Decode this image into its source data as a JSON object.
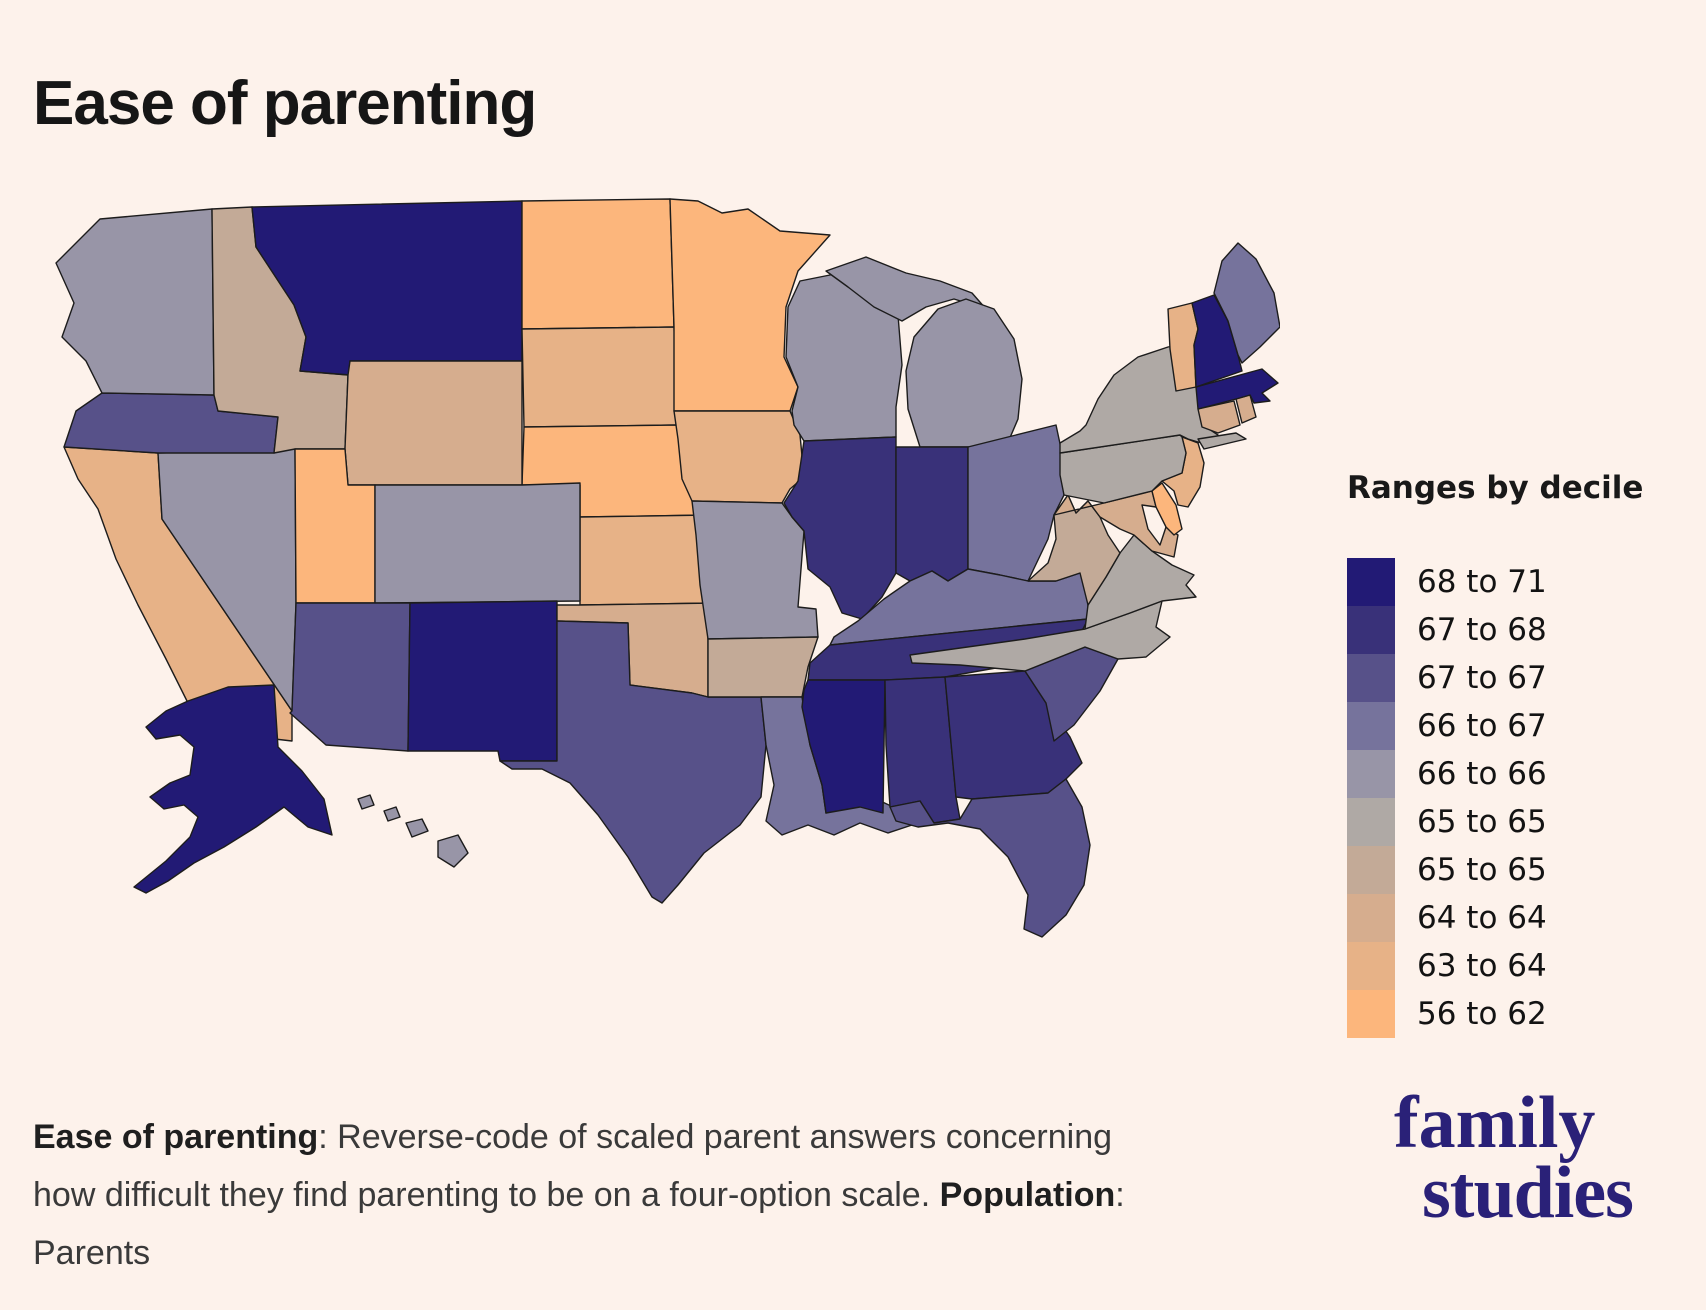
{
  "title": "Ease of parenting",
  "background_color": "#FDF2EB",
  "legend": {
    "title": "Ranges by decile",
    "items": [
      {
        "label": "68 to 71",
        "color": "#221A75"
      },
      {
        "label": "67 to 68",
        "color": "#393179"
      },
      {
        "label": "67 to 67",
        "color": "#575189"
      },
      {
        "label": "66 to 67",
        "color": "#76739C"
      },
      {
        "label": "66 to 66",
        "color": "#9895A7"
      },
      {
        "label": "65 to 65",
        "color": "#AFA9A5"
      },
      {
        "label": "65 to 65",
        "color": "#C3AA97"
      },
      {
        "label": "64 to 64",
        "color": "#D6AD8E"
      },
      {
        "label": "63 to 64",
        "color": "#E7B287"
      },
      {
        "label": "56 to 62",
        "color": "#FCB67C"
      }
    ]
  },
  "caption": {
    "term_bold": "Ease of parenting",
    "term_rest": ": Reverse-code of scaled parent answers concerning how difficult they find parenting to be on a four-option scale. ",
    "population_bold": "Population",
    "population_rest": ": Parents"
  },
  "logo": {
    "line1": "family",
    "line2": "studies",
    "color": "#2A2178"
  },
  "chart_data": {
    "type": "heatmap",
    "subtype": "us-state-choropleth",
    "title": "Ease of parenting",
    "legend_title": "Ranges by decile",
    "legend_position": "right",
    "buckets": [
      {
        "label": "68 to 71",
        "color": "#221A75"
      },
      {
        "label": "67 to 68",
        "color": "#393179"
      },
      {
        "label": "67 to 67",
        "color": "#575189"
      },
      {
        "label": "66 to 67",
        "color": "#76739C"
      },
      {
        "label": "66 to 66",
        "color": "#9895A7"
      },
      {
        "label": "65 to 65",
        "color": "#AFA9A5"
      },
      {
        "label": "65 to 65",
        "color": "#C3AA97"
      },
      {
        "label": "64 to 64",
        "color": "#D6AD8E"
      },
      {
        "label": "63 to 64",
        "color": "#E7B287"
      },
      {
        "label": "56 to 62",
        "color": "#FCB67C"
      }
    ],
    "states": [
      {
        "id": "WA",
        "name": "Washington",
        "range": "66 to 66",
        "color": "#9895A7"
      },
      {
        "id": "OR",
        "name": "Oregon",
        "range": "67 to 67",
        "color": "#575189"
      },
      {
        "id": "CA",
        "name": "California",
        "range": "63 to 64",
        "color": "#E7B287"
      },
      {
        "id": "NV",
        "name": "Nevada",
        "range": "66 to 66",
        "color": "#9895A7"
      },
      {
        "id": "ID",
        "name": "Idaho",
        "range": "65 to 65",
        "color": "#C3AA97"
      },
      {
        "id": "MT",
        "name": "Montana",
        "range": "68 to 71",
        "color": "#221A75"
      },
      {
        "id": "WY",
        "name": "Wyoming",
        "range": "64 to 64",
        "color": "#D6AD8E"
      },
      {
        "id": "UT",
        "name": "Utah",
        "range": "56 to 62",
        "color": "#FCB67C"
      },
      {
        "id": "CO",
        "name": "Colorado",
        "range": "66 to 66",
        "color": "#9895A7"
      },
      {
        "id": "AZ",
        "name": "Arizona",
        "range": "67 to 67",
        "color": "#575189"
      },
      {
        "id": "NM",
        "name": "New Mexico",
        "range": "68 to 71",
        "color": "#221A75"
      },
      {
        "id": "ND",
        "name": "North Dakota",
        "range": "56 to 62",
        "color": "#FCB67C"
      },
      {
        "id": "SD",
        "name": "South Dakota",
        "range": "63 to 64",
        "color": "#E7B287"
      },
      {
        "id": "NE",
        "name": "Nebraska",
        "range": "56 to 62",
        "color": "#FCB67C"
      },
      {
        "id": "KS",
        "name": "Kansas",
        "range": "63 to 64",
        "color": "#E7B287"
      },
      {
        "id": "OK",
        "name": "Oklahoma",
        "range": "64 to 64",
        "color": "#D6AD8E"
      },
      {
        "id": "TX",
        "name": "Texas",
        "range": "67 to 67",
        "color": "#575189"
      },
      {
        "id": "MN",
        "name": "Minnesota",
        "range": "56 to 62",
        "color": "#FCB67C"
      },
      {
        "id": "IA",
        "name": "Iowa",
        "range": "63 to 64",
        "color": "#E7B287"
      },
      {
        "id": "MO",
        "name": "Missouri",
        "range": "66 to 66",
        "color": "#9895A7"
      },
      {
        "id": "AR",
        "name": "Arkansas",
        "range": "65 to 65",
        "color": "#C3AA97"
      },
      {
        "id": "LA",
        "name": "Louisiana",
        "range": "66 to 67",
        "color": "#76739C"
      },
      {
        "id": "WI",
        "name": "Wisconsin",
        "range": "66 to 66",
        "color": "#9895A7"
      },
      {
        "id": "IL",
        "name": "Illinois",
        "range": "67 to 68",
        "color": "#393179"
      },
      {
        "id": "MI",
        "name": "Michigan",
        "range": "66 to 66",
        "color": "#9895A7"
      },
      {
        "id": "IN",
        "name": "Indiana",
        "range": "67 to 68",
        "color": "#393179"
      },
      {
        "id": "OH",
        "name": "Ohio",
        "range": "66 to 67",
        "color": "#76739C"
      },
      {
        "id": "KY",
        "name": "Kentucky",
        "range": "66 to 67",
        "color": "#76739C"
      },
      {
        "id": "TN",
        "name": "Tennessee",
        "range": "67 to 68",
        "color": "#393179"
      },
      {
        "id": "MS",
        "name": "Mississippi",
        "range": "68 to 71",
        "color": "#221A75"
      },
      {
        "id": "AL",
        "name": "Alabama",
        "range": "67 to 68",
        "color": "#393179"
      },
      {
        "id": "GA",
        "name": "Georgia",
        "range": "67 to 68",
        "color": "#393179"
      },
      {
        "id": "FL",
        "name": "Florida",
        "range": "67 to 67",
        "color": "#575189"
      },
      {
        "id": "SC",
        "name": "South Carolina",
        "range": "67 to 67",
        "color": "#575189"
      },
      {
        "id": "NC",
        "name": "North Carolina",
        "range": "65 to 65",
        "color": "#AFA9A5"
      },
      {
        "id": "VA",
        "name": "Virginia",
        "range": "65 to 65",
        "color": "#AFA9A5"
      },
      {
        "id": "WV",
        "name": "West Virginia",
        "range": "65 to 65",
        "color": "#C3AA97"
      },
      {
        "id": "MD",
        "name": "Maryland",
        "range": "64 to 64",
        "color": "#D6AD8E"
      },
      {
        "id": "DE",
        "name": "Delaware",
        "range": "56 to 62",
        "color": "#FCB67C"
      },
      {
        "id": "NJ",
        "name": "New Jersey",
        "range": "63 to 64",
        "color": "#E7B287"
      },
      {
        "id": "PA",
        "name": "Pennsylvania",
        "range": "65 to 65",
        "color": "#AFA9A5"
      },
      {
        "id": "NY",
        "name": "New York",
        "range": "65 to 65",
        "color": "#AFA9A5"
      },
      {
        "id": "CT",
        "name": "Connecticut",
        "range": "64 to 64",
        "color": "#D6AD8E"
      },
      {
        "id": "RI",
        "name": "Rhode Island",
        "range": "64 to 64",
        "color": "#D6AD8E"
      },
      {
        "id": "MA",
        "name": "Massachusetts",
        "range": "68 to 71",
        "color": "#221A75"
      },
      {
        "id": "VT",
        "name": "Vermont",
        "range": "63 to 64",
        "color": "#E7B287"
      },
      {
        "id": "NH",
        "name": "New Hampshire",
        "range": "68 to 71",
        "color": "#221A75"
      },
      {
        "id": "ME",
        "name": "Maine",
        "range": "66 to 67",
        "color": "#76739C"
      },
      {
        "id": "AK",
        "name": "Alaska",
        "range": "68 to 71",
        "color": "#221A75"
      },
      {
        "id": "HI",
        "name": "Hawaii",
        "range": "66 to 66",
        "color": "#9895A7"
      }
    ]
  }
}
